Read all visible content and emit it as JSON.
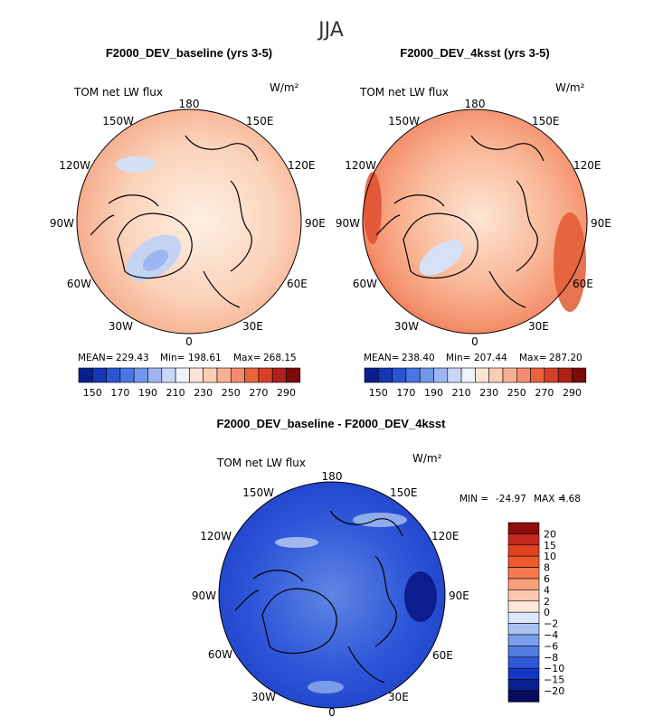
{
  "figure": {
    "season": "JJA"
  },
  "colors": {
    "frame": "#000000",
    "coast": "#000000",
    "warm_palette": [
      "#fdf0e6",
      "#fcd6c0",
      "#f9b798",
      "#f48a66",
      "#e8573a",
      "#c9301e",
      "#8e0d0d"
    ],
    "cool_palette": [
      "#e6eefb",
      "#bcd0f3",
      "#8fb0ec",
      "#5f86e3",
      "#3660d6",
      "#1d3fc4",
      "#0b1c8f"
    ]
  },
  "chart_data": [
    {
      "type": "map",
      "projection": "north-polar-stereographic",
      "title": "F2000_DEV_baseline (yrs 3-5)",
      "variable": "TOM net LW flux",
      "units": "W/m²",
      "longitude_labels": [
        "180",
        "150E",
        "120E",
        "90E",
        "60E",
        "30E",
        "0",
        "30W",
        "60W",
        "90W",
        "120W",
        "150W"
      ],
      "stats": {
        "mean_label": "MEAN=",
        "mean": "229.43",
        "min_label": "Min=",
        "min": "198.61",
        "max_label": "Max=",
        "max": "268.15"
      },
      "colorbar": {
        "orientation": "horizontal",
        "levels": [
          150,
          160,
          170,
          180,
          190,
          200,
          210,
          220,
          230,
          240,
          250,
          260,
          270,
          280,
          290
        ],
        "labels": [
          "150",
          "170",
          "190",
          "210",
          "230",
          "250",
          "270",
          "290"
        ],
        "colors": [
          "#0a1f8f",
          "#1638b8",
          "#2a55d2",
          "#4a76e3",
          "#7196ea",
          "#9db6f0",
          "#c9d8f6",
          "#eef2fb",
          "#fce4d4",
          "#fbcdb5",
          "#f8b094",
          "#f38c6c",
          "#e9633f",
          "#d6402a",
          "#b02219",
          "#7c0b0b"
        ]
      }
    },
    {
      "type": "map",
      "projection": "north-polar-stereographic",
      "title": "F2000_DEV_4ksst (yrs 3-5)",
      "variable": "TOM net LW flux",
      "units": "W/m²",
      "longitude_labels": [
        "180",
        "150E",
        "120E",
        "90E",
        "60E",
        "30E",
        "0",
        "30W",
        "60W",
        "90W",
        "120W",
        "150W"
      ],
      "stats": {
        "mean_label": "MEAN=",
        "mean": "238.40",
        "min_label": "Min=",
        "min": "207.44",
        "max_label": "Max=",
        "max": "287.20"
      },
      "colorbar": {
        "orientation": "horizontal",
        "levels": [
          150,
          160,
          170,
          180,
          190,
          200,
          210,
          220,
          230,
          240,
          250,
          260,
          270,
          280,
          290
        ],
        "labels": [
          "150",
          "170",
          "190",
          "210",
          "230",
          "250",
          "270",
          "290"
        ],
        "colors": [
          "#0a1f8f",
          "#1638b8",
          "#2a55d2",
          "#4a76e3",
          "#7196ea",
          "#9db6f0",
          "#c9d8f6",
          "#eef2fb",
          "#fce4d4",
          "#fbcdb5",
          "#f8b094",
          "#f38c6c",
          "#e9633f",
          "#d6402a",
          "#b02219",
          "#7c0b0b"
        ]
      }
    },
    {
      "type": "map",
      "projection": "north-polar-stereographic",
      "title": "F2000_DEV_baseline - F2000_DEV_4ksst",
      "variable": "TOM net LW flux",
      "units": "W/m²",
      "longitude_labels": [
        "180",
        "150E",
        "120E",
        "90E",
        "60E",
        "30E",
        "0",
        "30W",
        "60W",
        "90W",
        "120W",
        "150W"
      ],
      "stats": {
        "min_label": "MIN =",
        "min": "-24.97",
        "max_label": "MAX =",
        "max": "4.68"
      },
      "colorbar": {
        "orientation": "vertical",
        "labels": [
          "20",
          "15",
          "10",
          "8",
          "6",
          "4",
          "2",
          "0",
          "−2",
          "−4",
          "−6",
          "−8",
          "−10",
          "−15",
          "−20"
        ],
        "colors": [
          "#8e0c0c",
          "#c2281c",
          "#e1421f",
          "#f05a2c",
          "#f57a4d",
          "#f8a07c",
          "#fbc7ad",
          "#fde8dc",
          "#dce7fa",
          "#a9c2f1",
          "#7a9eea",
          "#527ce2",
          "#2f57d8",
          "#1336c4",
          "#09208f",
          "#050c5c"
        ]
      }
    }
  ]
}
